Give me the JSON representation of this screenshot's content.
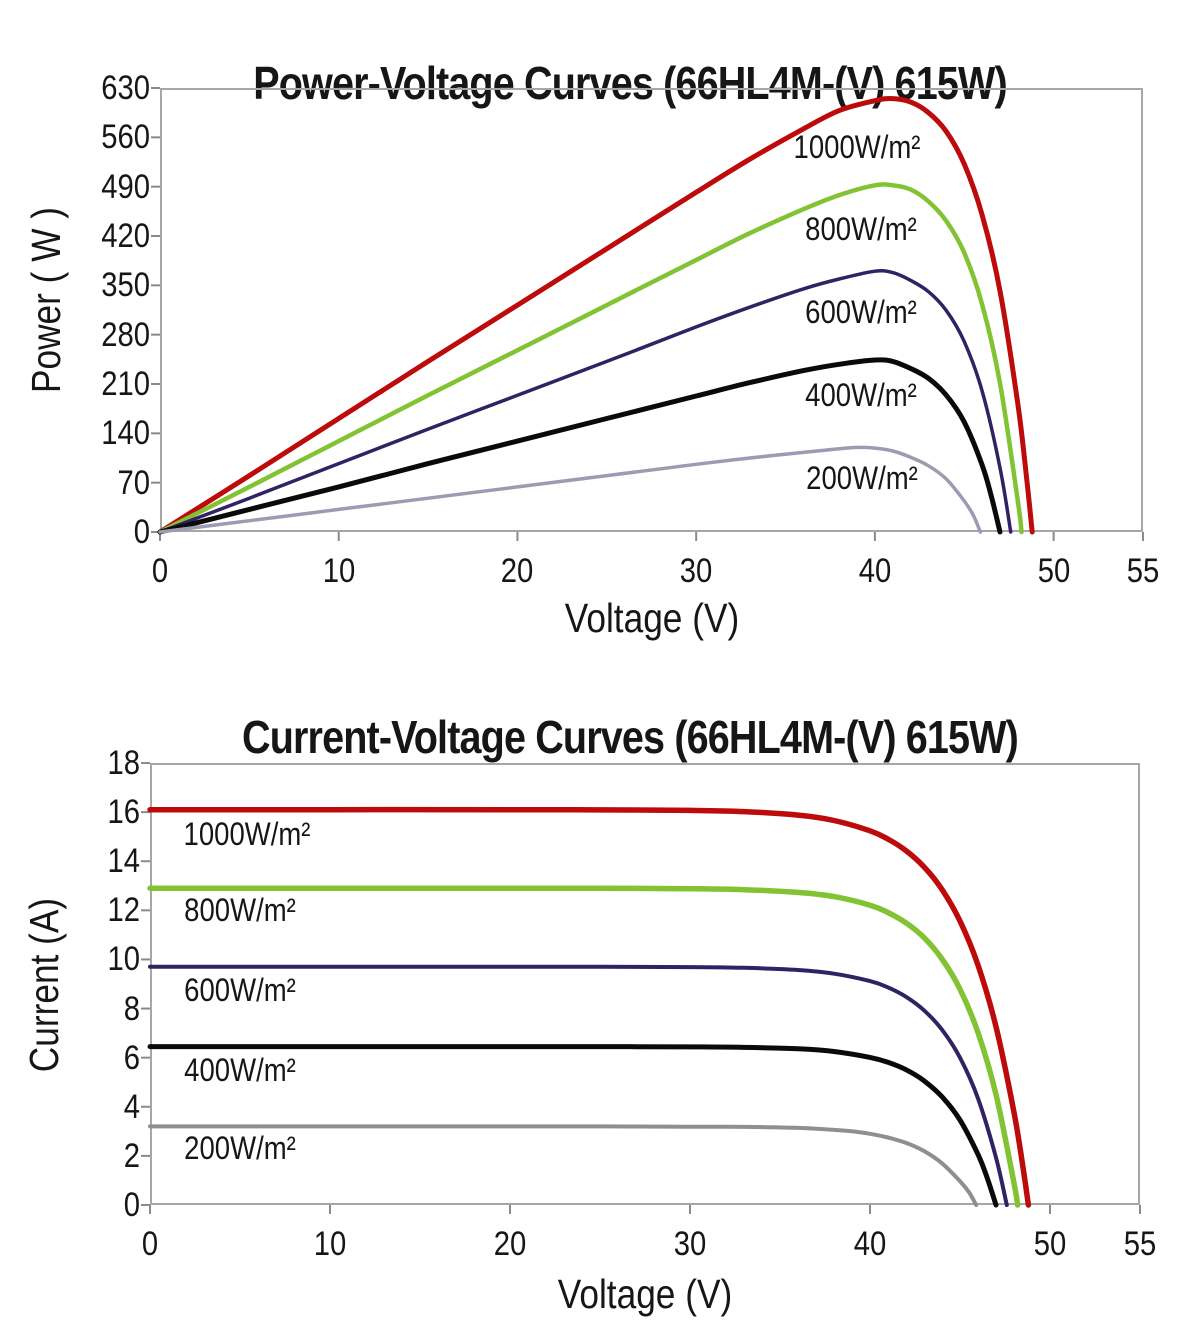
{
  "page": {
    "background": "#ffffff",
    "axis_color": "#a6a6a6",
    "tick_color": "#8a8a8a"
  },
  "chart_data": [
    {
      "id": "power-voltage",
      "type": "line",
      "title": "Power-Voltage Curves (66HL4M-(V) 615W)",
      "xlabel": "Voltage (V)",
      "ylabel": "Power ( W )",
      "xlim": [
        0,
        55
      ],
      "ylim": [
        0,
        630
      ],
      "x_ticks": [
        0,
        10,
        20,
        30,
        40,
        50,
        55
      ],
      "y_ticks": [
        0,
        70,
        140,
        210,
        280,
        350,
        420,
        490,
        560,
        630
      ],
      "grid": false,
      "legend": "inline-labels",
      "series": [
        {
          "name": "1000W/m²",
          "color": "#bd0b0b",
          "width": 5,
          "label_at": [
            39.0,
            546
          ],
          "points": [
            [
              0,
              0
            ],
            [
              5,
              80
            ],
            [
              10,
              161
            ],
            [
              15,
              242
            ],
            [
              20,
              322
            ],
            [
              25,
              402
            ],
            [
              30,
              482
            ],
            [
              33,
              529
            ],
            [
              36,
              572
            ],
            [
              38,
              598
            ],
            [
              40,
              612
            ],
            [
              41,
              615
            ],
            [
              42,
              610
            ],
            [
              43,
              595
            ],
            [
              44,
              568
            ],
            [
              45,
              522
            ],
            [
              46,
              450
            ],
            [
              47,
              342
            ],
            [
              48,
              181
            ],
            [
              48.5,
              74
            ],
            [
              48.8,
              0
            ]
          ]
        },
        {
          "name": "800W/m²",
          "color": "#82c334",
          "width": 4.5,
          "label_at": [
            39.2,
            430
          ],
          "points": [
            [
              0,
              0
            ],
            [
              5,
              64
            ],
            [
              10,
              129
            ],
            [
              15,
              194
            ],
            [
              20,
              258
            ],
            [
              25,
              322
            ],
            [
              30,
              386
            ],
            [
              33,
              424
            ],
            [
              36,
              458
            ],
            [
              38,
              478
            ],
            [
              40,
              492
            ],
            [
              41,
              492
            ],
            [
              42,
              486
            ],
            [
              43,
              469
            ],
            [
              44,
              441
            ],
            [
              45,
              396
            ],
            [
              46,
              323
            ],
            [
              47,
              211
            ],
            [
              48,
              43
            ],
            [
              48.2,
              0
            ]
          ]
        },
        {
          "name": "600W/m²",
          "color": "#322263",
          "width": 3.5,
          "label_at": [
            39.2,
            312
          ],
          "points": [
            [
              0,
              0
            ],
            [
              5,
              48
            ],
            [
              10,
              97
            ],
            [
              15,
              146
            ],
            [
              20,
              194
            ],
            [
              25,
              242
            ],
            [
              30,
              291
            ],
            [
              33,
              319
            ],
            [
              36,
              345
            ],
            [
              38,
              359
            ],
            [
              40,
              370
            ],
            [
              41,
              368
            ],
            [
              42,
              357
            ],
            [
              43,
              341
            ],
            [
              44,
              314
            ],
            [
              45,
              270
            ],
            [
              46,
              200
            ],
            [
              47,
              91
            ],
            [
              47.6,
              0
            ]
          ]
        },
        {
          "name": "400W/m²",
          "color": "#0a0a0a",
          "width": 5,
          "label_at": [
            39.2,
            194
          ],
          "points": [
            [
              0,
              0
            ],
            [
              5,
              32
            ],
            [
              10,
              64
            ],
            [
              15,
              97
            ],
            [
              20,
              129
            ],
            [
              25,
              161
            ],
            [
              30,
              193
            ],
            [
              33,
              212
            ],
            [
              36,
              229
            ],
            [
              38,
              238
            ],
            [
              40,
              244
            ],
            [
              41,
              242
            ],
            [
              42,
              232
            ],
            [
              43,
              218
            ],
            [
              44,
              194
            ],
            [
              45,
              156
            ],
            [
              46,
              95
            ],
            [
              46.5,
              52
            ],
            [
              47,
              0
            ]
          ]
        },
        {
          "name": "200W/m²",
          "color": "#9b9bb2",
          "width": 3.5,
          "label_at": [
            39.3,
            77
          ],
          "points": [
            [
              0,
              0
            ],
            [
              5,
              16
            ],
            [
              10,
              32
            ],
            [
              15,
              48
            ],
            [
              20,
              64
            ],
            [
              25,
              80
            ],
            [
              30,
              96
            ],
            [
              33,
              105
            ],
            [
              36,
              113
            ],
            [
              38,
              118
            ],
            [
              39,
              120
            ],
            [
              40,
              119
            ],
            [
              41,
              115
            ],
            [
              42,
              106
            ],
            [
              43,
              94
            ],
            [
              44,
              75
            ],
            [
              45,
              44
            ],
            [
              45.5,
              24
            ],
            [
              45.9,
              0
            ]
          ]
        }
      ]
    },
    {
      "id": "current-voltage",
      "type": "line",
      "title": "Current-Voltage Curves (66HL4M-(V) 615W)",
      "xlabel": "Voltage (V)",
      "ylabel": "Current (A)",
      "xlim": [
        0,
        55
      ],
      "ylim": [
        0,
        18
      ],
      "x_ticks": [
        0,
        10,
        20,
        30,
        40,
        50,
        55
      ],
      "y_ticks": [
        0,
        2,
        4,
        6,
        8,
        10,
        12,
        14,
        16,
        18
      ],
      "grid": false,
      "legend": "inline-labels",
      "series": [
        {
          "name": "1000W/m²",
          "color": "#bd0b0b",
          "width": 5.5,
          "label_at": [
            5.4,
            15.1
          ],
          "points": [
            [
              0,
              16.1
            ],
            [
              10,
              16.1
            ],
            [
              20,
              16.1
            ],
            [
              25,
              16.09
            ],
            [
              30,
              16.07
            ],
            [
              33,
              16.02
            ],
            [
              36,
              15.88
            ],
            [
              38,
              15.66
            ],
            [
              40,
              15.24
            ],
            [
              41,
              14.9
            ],
            [
              42,
              14.43
            ],
            [
              43,
              13.77
            ],
            [
              44,
              12.85
            ],
            [
              45,
              11.56
            ],
            [
              46,
              9.77
            ],
            [
              47,
              7.26
            ],
            [
              48,
              3.77
            ],
            [
              48.5,
              1.53
            ],
            [
              48.8,
              0
            ]
          ]
        },
        {
          "name": "800W/m²",
          "color": "#82c334",
          "width": 5.5,
          "label_at": [
            5.0,
            12.0
          ],
          "points": [
            [
              0,
              12.9
            ],
            [
              10,
              12.9
            ],
            [
              20,
              12.9
            ],
            [
              25,
              12.9
            ],
            [
              30,
              12.88
            ],
            [
              33,
              12.84
            ],
            [
              36,
              12.73
            ],
            [
              38,
              12.56
            ],
            [
              40,
              12.21
            ],
            [
              41,
              11.91
            ],
            [
              42,
              11.49
            ],
            [
              43,
              10.89
            ],
            [
              44,
              10.02
            ],
            [
              45,
              8.79
            ],
            [
              46,
              7.02
            ],
            [
              47,
              4.5
            ],
            [
              48,
              0.89
            ],
            [
              48.2,
              0
            ]
          ]
        },
        {
          "name": "600W/m²",
          "color": "#322263",
          "width": 4,
          "label_at": [
            5.0,
            8.76
          ],
          "points": [
            [
              0,
              9.7
            ],
            [
              10,
              9.7
            ],
            [
              20,
              9.7
            ],
            [
              25,
              9.7
            ],
            [
              30,
              9.69
            ],
            [
              33,
              9.66
            ],
            [
              36,
              9.57
            ],
            [
              38,
              9.42
            ],
            [
              40,
              9.12
            ],
            [
              41,
              8.86
            ],
            [
              42,
              8.48
            ],
            [
              43,
              7.93
            ],
            [
              44,
              7.14
            ],
            [
              45,
              6.0
            ],
            [
              46,
              4.34
            ],
            [
              47,
              1.93
            ],
            [
              47.6,
              0
            ]
          ]
        },
        {
          "name": "400W/m²",
          "color": "#0a0a0a",
          "width": 5,
          "label_at": [
            5.0,
            5.5
          ],
          "points": [
            [
              0,
              6.45
            ],
            [
              10,
              6.45
            ],
            [
              20,
              6.45
            ],
            [
              25,
              6.45
            ],
            [
              30,
              6.44
            ],
            [
              33,
              6.42
            ],
            [
              36,
              6.36
            ],
            [
              38,
              6.25
            ],
            [
              40,
              6.01
            ],
            [
              41,
              5.81
            ],
            [
              42,
              5.51
            ],
            [
              43,
              5.06
            ],
            [
              44,
              4.41
            ],
            [
              45,
              3.46
            ],
            [
              46,
              2.06
            ],
            [
              46.5,
              1.13
            ],
            [
              47,
              0
            ]
          ]
        },
        {
          "name": "200W/m²",
          "color": "#8f8f8f",
          "width": 4,
          "label_at": [
            5.0,
            2.33
          ],
          "points": [
            [
              0,
              3.2
            ],
            [
              10,
              3.2
            ],
            [
              20,
              3.2
            ],
            [
              25,
              3.2
            ],
            [
              30,
              3.19
            ],
            [
              33,
              3.18
            ],
            [
              36,
              3.14
            ],
            [
              38,
              3.06
            ],
            [
              39,
              3.0
            ],
            [
              40,
              2.9
            ],
            [
              41,
              2.75
            ],
            [
              42,
              2.53
            ],
            [
              43,
              2.2
            ],
            [
              44,
              1.7
            ],
            [
              45,
              0.97
            ],
            [
              45.5,
              0.52
            ],
            [
              45.9,
              0
            ]
          ]
        }
      ]
    }
  ]
}
